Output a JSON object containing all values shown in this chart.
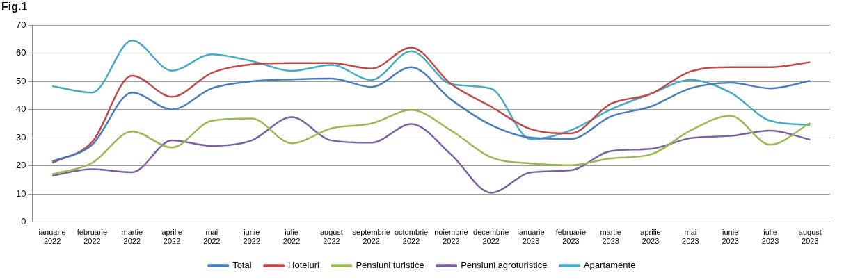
{
  "chart_data": {
    "type": "line",
    "title": "Fig.1",
    "categories": [
      "ianuarie 2022",
      "februarie 2022",
      "martie 2022",
      "aprilie 2022",
      "mai 2022",
      "iunie 2022",
      "iulie 2022",
      "august 2022",
      "septembrie 2022",
      "octombrie 2022",
      "noiembrie 2022",
      "decembrie 2022",
      "ianuarie 2023",
      "februarie 2023",
      "martie 2023",
      "aprilie 2023",
      "mai 2023",
      "iunie 2023",
      "iulie 2023",
      "august 2023"
    ],
    "series": [
      {
        "name": "Total",
        "color": "#4a7ebb",
        "values": [
          21.5,
          27.5,
          46,
          40,
          47.5,
          50,
          50.7,
          51,
          48,
          55,
          43.5,
          34.5,
          30,
          29.5,
          37.5,
          41,
          47.5,
          49.5,
          47.5,
          50.2
        ]
      },
      {
        "name": "Hoteluri",
        "color": "#be4b48",
        "values": [
          21,
          28.5,
          52,
          44.5,
          53,
          56,
          56.5,
          56.5,
          54.5,
          62,
          49,
          41,
          33,
          31.5,
          42,
          45.5,
          53.5,
          55,
          55,
          56.8
        ]
      },
      {
        "name": "Pensiuni turistice",
        "color": "#98b954",
        "values": [
          17,
          21,
          32.2,
          26.5,
          36,
          36.8,
          28,
          33.3,
          35,
          39.8,
          32.5,
          23,
          20.8,
          20.2,
          22.6,
          24,
          32.5,
          37.8,
          27.5,
          35.2
        ]
      },
      {
        "name": "Pensiuni agroturistice",
        "color": "#7d60a0",
        "values": [
          16.5,
          18.8,
          17.7,
          29,
          27.1,
          29,
          37.3,
          29,
          28.2,
          34.8,
          24,
          10.4,
          17.6,
          18.4,
          25.2,
          26,
          29.8,
          30.6,
          32.5,
          29.3
        ]
      },
      {
        "name": "Apartamente",
        "color": "#46aac5",
        "values": [
          48.3,
          46,
          64.5,
          53.8,
          59.6,
          57.2,
          53.7,
          55.8,
          50.5,
          60.7,
          49,
          47.4,
          29.4,
          32.6,
          40,
          45.5,
          50.5,
          46,
          36,
          34.5
        ]
      }
    ],
    "ylim": [
      0,
      70
    ],
    "yticks": [
      0,
      10,
      20,
      30,
      40,
      50,
      60,
      70
    ],
    "grid": "y",
    "legend": "bottom",
    "marker": "none",
    "line_style": "solid"
  }
}
